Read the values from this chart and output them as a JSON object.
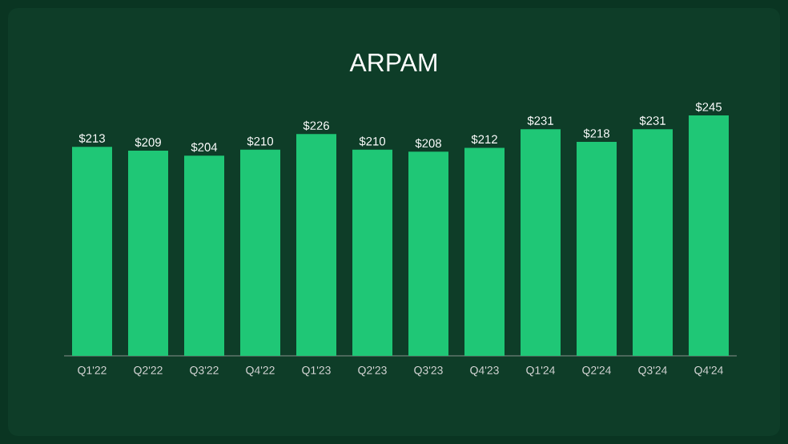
{
  "chart_data": {
    "type": "bar",
    "title": "ARPAM",
    "categories": [
      "Q1'22",
      "Q2'22",
      "Q3'22",
      "Q4'22",
      "Q1'23",
      "Q2'23",
      "Q3'23",
      "Q4'23",
      "Q1'24",
      "Q2'24",
      "Q3'24",
      "Q4'24"
    ],
    "values": [
      213,
      209,
      204,
      210,
      226,
      210,
      208,
      212,
      231,
      218,
      231,
      245
    ],
    "value_labels": [
      "$213",
      "$209",
      "$204",
      "$210",
      "$226",
      "$210",
      "$208",
      "$212",
      "$231",
      "$218",
      "$231",
      "$245"
    ],
    "color": "#1fc776"
  }
}
